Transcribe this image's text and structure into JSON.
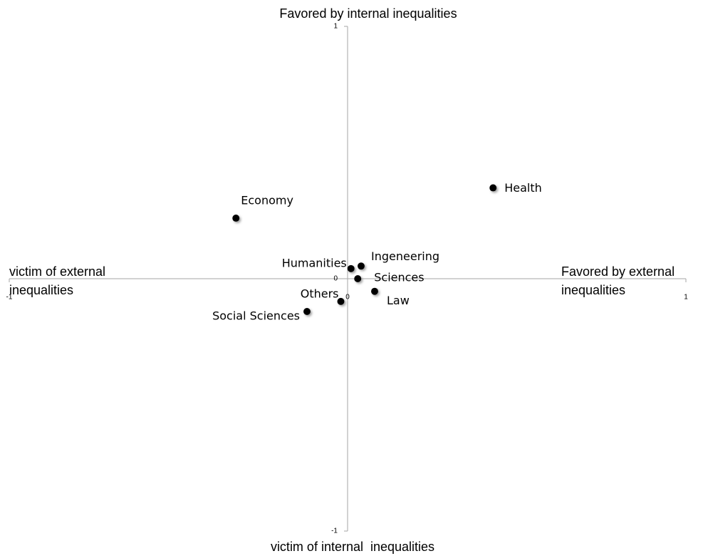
{
  "chart_data": {
    "type": "scatter",
    "labels": [
      "Health",
      "Economy",
      "Humanities",
      "Ingeneering",
      "Sciences",
      "Law",
      "Others",
      "Social Sciences"
    ],
    "x": [
      0.43,
      -0.33,
      0.01,
      0.04,
      0.03,
      0.08,
      -0.02,
      -0.12
    ],
    "y": [
      0.36,
      0.24,
      0.04,
      0.05,
      0.0,
      -0.05,
      -0.09,
      -0.13
    ],
    "color": "#000000",
    "xlim": [
      -1,
      1
    ],
    "ylim": [
      -1,
      1
    ],
    "xticks": [
      -1,
      0,
      1
    ],
    "yticks": [
      -1,
      0,
      1
    ],
    "annotations": {
      "top": "Favored by internal inequalities",
      "bottom": "victim of internal  inequalities",
      "left": [
        "victim of external",
        "inequalities"
      ],
      "right": [
        "Favored by external",
        "inequalities"
      ]
    }
  }
}
